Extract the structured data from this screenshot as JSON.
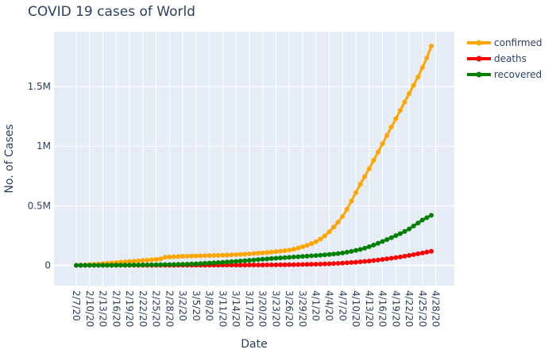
{
  "chart_data": {
    "type": "line",
    "title": "COVID 19 cases of World",
    "xlabel": "Date",
    "ylabel": "No. of Cases",
    "y_tick_labels": [
      "0",
      "0.5M",
      "1M",
      "1.5M"
    ],
    "y_tick_values": [
      0,
      500000,
      1000000,
      1500000
    ],
    "ylim": [
      -170000,
      1960000
    ],
    "x_tick_labels": [
      "2/7/20",
      "2/10/20",
      "2/13/20",
      "2/16/20",
      "2/19/20",
      "2/22/20",
      "2/25/20",
      "2/28/20",
      "3/2/20",
      "3/5/20",
      "3/8/20",
      "3/11/20",
      "3/14/20",
      "3/17/20",
      "3/20/20",
      "3/23/20",
      "3/26/20",
      "3/29/20",
      "4/1/20",
      "4/4/20",
      "4/7/20",
      "4/10/20",
      "4/13/20",
      "4/16/20",
      "4/19/20",
      "4/22/20",
      "4/25/20",
      "4/28/20"
    ],
    "grid": true,
    "legend_position": "top-right",
    "x_start": "2/7/20",
    "series": [
      {
        "name": "confirmed",
        "color": "#ffa500",
        "values": [
          1000,
          2500,
          4000,
          6000,
          8000,
          11000,
          14000,
          17000,
          20000,
          23000,
          26000,
          29000,
          32000,
          35000,
          38000,
          41000,
          44000,
          47000,
          50000,
          54000,
          68000,
          70000,
          72000,
          74000,
          76000,
          77000,
          78000,
          79000,
          80000,
          81000,
          82000,
          83000,
          84000,
          85000,
          86000,
          88000,
          90000,
          92000,
          94000,
          96000,
          99000,
          102000,
          105000,
          108000,
          111000,
          115000,
          119000,
          123000,
          128000,
          135000,
          145000,
          156000,
          168000,
          182000,
          198000,
          220000,
          248000,
          282000,
          320000,
          362000,
          410000,
          470000,
          540000,
          610000,
          680000,
          745000,
          810000,
          880000,
          950000,
          1020000,
          1090000,
          1160000,
          1230000,
          1300000,
          1370000,
          1440000,
          1510000,
          1580000,
          1660000,
          1740000,
          1840000
        ]
      },
      {
        "name": "deaths",
        "color": "#ff0000",
        "values": [
          30,
          50,
          80,
          110,
          140,
          170,
          200,
          240,
          280,
          320,
          360,
          400,
          450,
          500,
          550,
          600,
          650,
          700,
          750,
          800,
          850,
          900,
          950,
          1000,
          1050,
          1100,
          1200,
          1300,
          1400,
          1500,
          1600,
          1700,
          1800,
          1900,
          2000,
          2100,
          2200,
          2300,
          2500,
          2700,
          2900,
          3100,
          3300,
          3500,
          3800,
          4100,
          4400,
          4800,
          5200,
          5700,
          6300,
          7000,
          7800,
          8700,
          9700,
          10800,
          12000,
          13400,
          15000,
          16800,
          18800,
          21000,
          23500,
          26300,
          29400,
          32800,
          36500,
          40500,
          44800,
          49400,
          54300,
          59500,
          65000,
          70800,
          76900,
          83300,
          90000,
          97000,
          104000,
          111000,
          118000
        ]
      },
      {
        "name": "recovered",
        "color": "#008000",
        "values": [
          100,
          200,
          300,
          400,
          500,
          700,
          900,
          1100,
          1300,
          1600,
          1900,
          2200,
          2500,
          2900,
          3300,
          3700,
          4100,
          4600,
          5100,
          5600,
          6200,
          6800,
          7500,
          8200,
          9000,
          10000,
          11500,
          13000,
          15000,
          17000,
          19000,
          21000,
          23000,
          25500,
          28000,
          30500,
          33000,
          36000,
          39000,
          42000,
          45000,
          48000,
          51000,
          54000,
          57000,
          60000,
          62500,
          65000,
          67500,
          70000,
          72500,
          75000,
          77500,
          80000,
          82500,
          85000,
          88000,
          91000,
          95000,
          99000,
          104000,
          110000,
          117000,
          125000,
          134000,
          144000,
          156000,
          170000,
          185000,
          200000,
          216000,
          232000,
          249000,
          266000,
          284000,
          305000,
          330000,
          355000,
          380000,
          400000,
          420000
        ]
      }
    ]
  }
}
